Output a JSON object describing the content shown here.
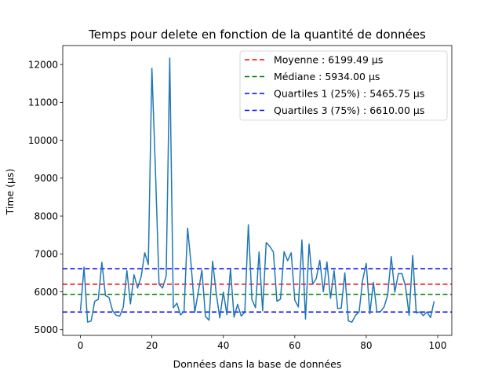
{
  "chart_data": {
    "type": "line",
    "title": "Temps pour delete en fonction de la quantité de données",
    "xlabel": "Données dans la base de données",
    "ylabel": "Time (µs)",
    "xlim": [
      -4.95,
      103.95
    ],
    "ylim": [
      4850,
      12500
    ],
    "xticks": [
      0,
      20,
      40,
      60,
      80,
      100
    ],
    "yticks": [
      5000,
      6000,
      7000,
      8000,
      9000,
      10000,
      11000,
      12000
    ],
    "grid": false,
    "legend_position": "top-right",
    "series": [
      {
        "color": "#1f77b4",
        "x": [
          0,
          1,
          2,
          3,
          4,
          5,
          6,
          7,
          8,
          9,
          10,
          11,
          12,
          13,
          14,
          15,
          16,
          17,
          18,
          19,
          20,
          21,
          22,
          23,
          24,
          25,
          26,
          27,
          28,
          29,
          30,
          31,
          32,
          33,
          34,
          35,
          36,
          37,
          38,
          39,
          40,
          41,
          42,
          43,
          44,
          45,
          46,
          47,
          48,
          49,
          50,
          51,
          52,
          53,
          54,
          55,
          56,
          57,
          58,
          59,
          60,
          61,
          62,
          63,
          64,
          65,
          66,
          67,
          68,
          69,
          70,
          71,
          72,
          73,
          74,
          75,
          76,
          77,
          78,
          79,
          80,
          81,
          82,
          83,
          84,
          85,
          86,
          87,
          88,
          89,
          90,
          91,
          92,
          93,
          94,
          95,
          96,
          97,
          98,
          99
        ],
        "values": [
          5500,
          6650,
          5200,
          5230,
          5750,
          5800,
          6780,
          5900,
          5850,
          5500,
          5380,
          5360,
          5600,
          6560,
          5680,
          6450,
          6100,
          6400,
          7030,
          6720,
          11900,
          9200,
          6200,
          6100,
          6420,
          12170,
          5580,
          5700,
          5390,
          5480,
          7680,
          6700,
          5460,
          6000,
          6570,
          5350,
          5250,
          6810,
          5970,
          5310,
          5990,
          5400,
          6600,
          5330,
          5670,
          5360,
          5460,
          7770,
          5800,
          5580,
          7050,
          5500,
          7300,
          7200,
          7050,
          5750,
          5810,
          7060,
          6820,
          7030,
          5780,
          5600,
          7370,
          5280,
          7260,
          6200,
          6350,
          6830,
          6000,
          6790,
          5830,
          6560,
          5560,
          5570,
          6500,
          5230,
          5200,
          5380,
          5470,
          6310,
          6750,
          5420,
          6250,
          5470,
          5480,
          5600,
          5910,
          6930,
          5990,
          6480,
          6480,
          6140,
          5380,
          6960,
          5440,
          5470,
          5370,
          5470,
          5320,
          5750
        ]
      }
    ],
    "reference_lines": [
      {
        "label": "Moyenne : 6199.49 µs",
        "value": 6199.49,
        "color": "#ff0000"
      },
      {
        "label": "Médiane : 5934.00 µs",
        "value": 5934.0,
        "color": "#008000"
      },
      {
        "label": "Quartiles 1 (25%) : 5465.75 µs",
        "value": 5465.75,
        "color": "#0000ff"
      },
      {
        "label": "Quartiles 3 (75%) : 6610.00 µs",
        "value": 6610.0,
        "color": "#0000ff"
      }
    ]
  }
}
